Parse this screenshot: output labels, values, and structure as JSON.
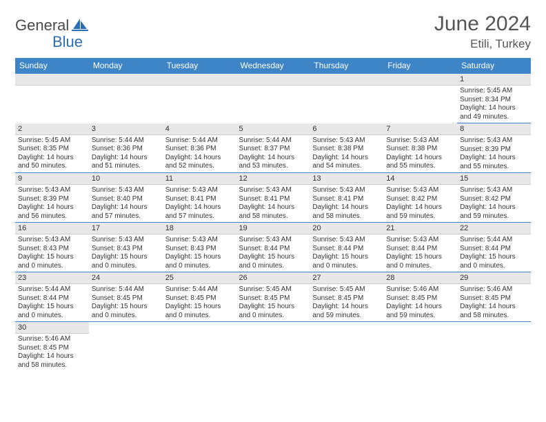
{
  "logo": {
    "part1": "General",
    "part2": "Blue"
  },
  "title": "June 2024",
  "location": "Etili, Turkey",
  "colors": {
    "header_bg": "#3d85c6",
    "header_fg": "#ffffff",
    "daynum_bg": "#e8e8e8",
    "border": "#3d85c6",
    "logo_gray": "#4a4a4a",
    "logo_blue": "#2a6fb5"
  },
  "weekdays": [
    "Sunday",
    "Monday",
    "Tuesday",
    "Wednesday",
    "Thursday",
    "Friday",
    "Saturday"
  ],
  "weeks": [
    [
      null,
      null,
      null,
      null,
      null,
      null,
      {
        "n": "1",
        "sr": "Sunrise: 5:45 AM",
        "ss": "Sunset: 8:34 PM",
        "d1": "Daylight: 14 hours",
        "d2": "and 49 minutes."
      }
    ],
    [
      {
        "n": "2",
        "sr": "Sunrise: 5:45 AM",
        "ss": "Sunset: 8:35 PM",
        "d1": "Daylight: 14 hours",
        "d2": "and 50 minutes."
      },
      {
        "n": "3",
        "sr": "Sunrise: 5:44 AM",
        "ss": "Sunset: 8:36 PM",
        "d1": "Daylight: 14 hours",
        "d2": "and 51 minutes."
      },
      {
        "n": "4",
        "sr": "Sunrise: 5:44 AM",
        "ss": "Sunset: 8:36 PM",
        "d1": "Daylight: 14 hours",
        "d2": "and 52 minutes."
      },
      {
        "n": "5",
        "sr": "Sunrise: 5:44 AM",
        "ss": "Sunset: 8:37 PM",
        "d1": "Daylight: 14 hours",
        "d2": "and 53 minutes."
      },
      {
        "n": "6",
        "sr": "Sunrise: 5:43 AM",
        "ss": "Sunset: 8:38 PM",
        "d1": "Daylight: 14 hours",
        "d2": "and 54 minutes."
      },
      {
        "n": "7",
        "sr": "Sunrise: 5:43 AM",
        "ss": "Sunset: 8:38 PM",
        "d1": "Daylight: 14 hours",
        "d2": "and 55 minutes."
      },
      {
        "n": "8",
        "sr": "Sunrise: 5:43 AM",
        "ss": "Sunset: 8:39 PM",
        "d1": "Daylight: 14 hours",
        "d2": "and 55 minutes."
      }
    ],
    [
      {
        "n": "9",
        "sr": "Sunrise: 5:43 AM",
        "ss": "Sunset: 8:39 PM",
        "d1": "Daylight: 14 hours",
        "d2": "and 56 minutes."
      },
      {
        "n": "10",
        "sr": "Sunrise: 5:43 AM",
        "ss": "Sunset: 8:40 PM",
        "d1": "Daylight: 14 hours",
        "d2": "and 57 minutes."
      },
      {
        "n": "11",
        "sr": "Sunrise: 5:43 AM",
        "ss": "Sunset: 8:41 PM",
        "d1": "Daylight: 14 hours",
        "d2": "and 57 minutes."
      },
      {
        "n": "12",
        "sr": "Sunrise: 5:43 AM",
        "ss": "Sunset: 8:41 PM",
        "d1": "Daylight: 14 hours",
        "d2": "and 58 minutes."
      },
      {
        "n": "13",
        "sr": "Sunrise: 5:43 AM",
        "ss": "Sunset: 8:41 PM",
        "d1": "Daylight: 14 hours",
        "d2": "and 58 minutes."
      },
      {
        "n": "14",
        "sr": "Sunrise: 5:43 AM",
        "ss": "Sunset: 8:42 PM",
        "d1": "Daylight: 14 hours",
        "d2": "and 59 minutes."
      },
      {
        "n": "15",
        "sr": "Sunrise: 5:43 AM",
        "ss": "Sunset: 8:42 PM",
        "d1": "Daylight: 14 hours",
        "d2": "and 59 minutes."
      }
    ],
    [
      {
        "n": "16",
        "sr": "Sunrise: 5:43 AM",
        "ss": "Sunset: 8:43 PM",
        "d1": "Daylight: 15 hours",
        "d2": "and 0 minutes."
      },
      {
        "n": "17",
        "sr": "Sunrise: 5:43 AM",
        "ss": "Sunset: 8:43 PM",
        "d1": "Daylight: 15 hours",
        "d2": "and 0 minutes."
      },
      {
        "n": "18",
        "sr": "Sunrise: 5:43 AM",
        "ss": "Sunset: 8:43 PM",
        "d1": "Daylight: 15 hours",
        "d2": "and 0 minutes."
      },
      {
        "n": "19",
        "sr": "Sunrise: 5:43 AM",
        "ss": "Sunset: 8:44 PM",
        "d1": "Daylight: 15 hours",
        "d2": "and 0 minutes."
      },
      {
        "n": "20",
        "sr": "Sunrise: 5:43 AM",
        "ss": "Sunset: 8:44 PM",
        "d1": "Daylight: 15 hours",
        "d2": "and 0 minutes."
      },
      {
        "n": "21",
        "sr": "Sunrise: 5:43 AM",
        "ss": "Sunset: 8:44 PM",
        "d1": "Daylight: 15 hours",
        "d2": "and 0 minutes."
      },
      {
        "n": "22",
        "sr": "Sunrise: 5:44 AM",
        "ss": "Sunset: 8:44 PM",
        "d1": "Daylight: 15 hours",
        "d2": "and 0 minutes."
      }
    ],
    [
      {
        "n": "23",
        "sr": "Sunrise: 5:44 AM",
        "ss": "Sunset: 8:44 PM",
        "d1": "Daylight: 15 hours",
        "d2": "and 0 minutes."
      },
      {
        "n": "24",
        "sr": "Sunrise: 5:44 AM",
        "ss": "Sunset: 8:45 PM",
        "d1": "Daylight: 15 hours",
        "d2": "and 0 minutes."
      },
      {
        "n": "25",
        "sr": "Sunrise: 5:44 AM",
        "ss": "Sunset: 8:45 PM",
        "d1": "Daylight: 15 hours",
        "d2": "and 0 minutes."
      },
      {
        "n": "26",
        "sr": "Sunrise: 5:45 AM",
        "ss": "Sunset: 8:45 PM",
        "d1": "Daylight: 15 hours",
        "d2": "and 0 minutes."
      },
      {
        "n": "27",
        "sr": "Sunrise: 5:45 AM",
        "ss": "Sunset: 8:45 PM",
        "d1": "Daylight: 14 hours",
        "d2": "and 59 minutes."
      },
      {
        "n": "28",
        "sr": "Sunrise: 5:46 AM",
        "ss": "Sunset: 8:45 PM",
        "d1": "Daylight: 14 hours",
        "d2": "and 59 minutes."
      },
      {
        "n": "29",
        "sr": "Sunrise: 5:46 AM",
        "ss": "Sunset: 8:45 PM",
        "d1": "Daylight: 14 hours",
        "d2": "and 58 minutes."
      }
    ],
    [
      {
        "n": "30",
        "sr": "Sunrise: 5:46 AM",
        "ss": "Sunset: 8:45 PM",
        "d1": "Daylight: 14 hours",
        "d2": "and 58 minutes."
      },
      null,
      null,
      null,
      null,
      null,
      null
    ]
  ]
}
